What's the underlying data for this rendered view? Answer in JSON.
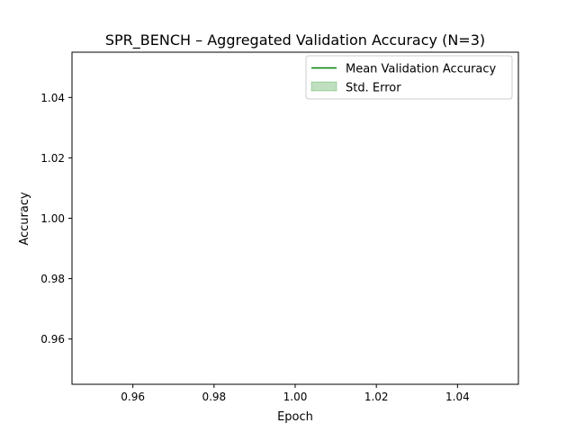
{
  "chart_data": {
    "type": "line",
    "title": "SPR_BENCH – Aggregated Validation Accuracy (N=3)",
    "xlabel": "Epoch",
    "ylabel": "Accuracy",
    "xlim": [
      0.945,
      1.055
    ],
    "ylim": [
      0.945,
      1.055
    ],
    "xticks": [
      0.96,
      0.98,
      1.0,
      1.02,
      1.04
    ],
    "yticks": [
      0.96,
      0.98,
      1.0,
      1.02,
      1.04
    ],
    "xtick_labels": [
      "0.96",
      "0.98",
      "1.00",
      "1.02",
      "1.04"
    ],
    "ytick_labels": [
      "0.96",
      "0.98",
      "1.00",
      "1.02",
      "1.04"
    ],
    "grid": false,
    "legend_position": "top-right",
    "series": [
      {
        "name": "Mean Validation Accuracy",
        "kind": "line",
        "color": "#008000",
        "x": [],
        "y": []
      },
      {
        "name": "Std. Error",
        "kind": "band",
        "color": "#008000",
        "fill_opacity": 0.25,
        "x": [],
        "lower": [],
        "upper": []
      }
    ]
  }
}
